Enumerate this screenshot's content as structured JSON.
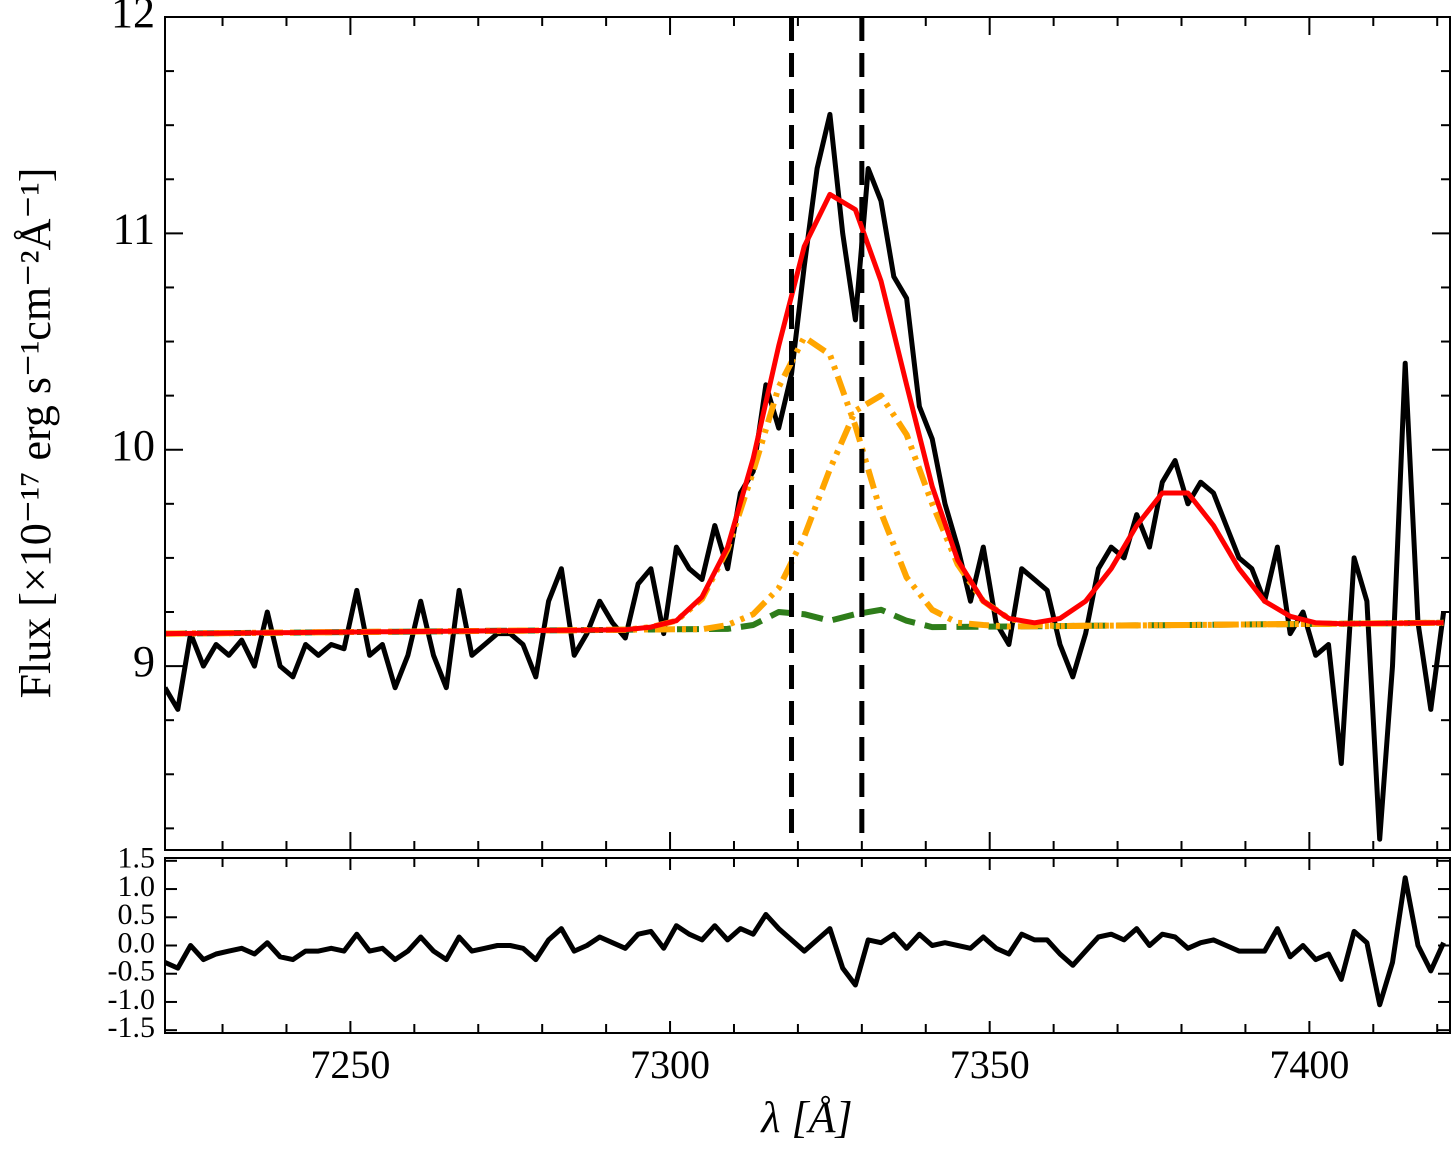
{
  "chart_data": [
    {
      "type": "line",
      "ylabel": "Flux [×10⁻¹⁷ erg s⁻¹cm⁻²Å⁻¹]",
      "xlim": [
        7221,
        7422
      ],
      "ylim": [
        8.15,
        12
      ],
      "yticks": [
        9,
        10,
        11,
        12
      ],
      "yminor": [
        8.25,
        8.5,
        8.75,
        9.25,
        9.5,
        9.75,
        10.25,
        10.5,
        10.75,
        11.25,
        11.5,
        11.75
      ],
      "vlines": [
        7319,
        7330
      ],
      "series": [
        {
          "color": "#000000",
          "style": "solid",
          "x": [
            7221,
            7223,
            7225,
            7227,
            7229,
            7231,
            7233,
            7235,
            7237,
            7239,
            7241,
            7243,
            7245,
            7247,
            7249,
            7251,
            7253,
            7255,
            7257,
            7259,
            7261,
            7263,
            7265,
            7267,
            7269,
            7271,
            7273,
            7275,
            7277,
            7279,
            7281,
            7283,
            7285,
            7287,
            7289,
            7291,
            7293,
            7295,
            7297,
            7299,
            7301,
            7303,
            7305,
            7307,
            7309,
            7311,
            7313,
            7315,
            7317,
            7319,
            7321,
            7323,
            7325,
            7327,
            7329,
            7331,
            7333,
            7335,
            7337,
            7339,
            7341,
            7343,
            7345,
            7347,
            7349,
            7351,
            7353,
            7355,
            7357,
            7359,
            7361,
            7363,
            7365,
            7367,
            7369,
            7371,
            7373,
            7375,
            7377,
            7379,
            7381,
            7383,
            7385,
            7387,
            7389,
            7391,
            7393,
            7395,
            7397,
            7399,
            7401,
            7403,
            7405,
            7407,
            7409,
            7411,
            7413,
            7415,
            7417,
            7419,
            7421
          ],
          "values": [
            8.9,
            8.8,
            9.15,
            9.0,
            9.1,
            9.05,
            9.12,
            9.0,
            9.25,
            9.0,
            8.95,
            9.1,
            9.05,
            9.1,
            9.08,
            9.35,
            9.05,
            9.1,
            8.9,
            9.05,
            9.3,
            9.05,
            8.9,
            9.35,
            9.05,
            9.1,
            9.15,
            9.15,
            9.1,
            8.95,
            9.3,
            9.45,
            9.05,
            9.15,
            9.3,
            9.2,
            9.13,
            9.38,
            9.45,
            9.15,
            9.55,
            9.45,
            9.4,
            9.65,
            9.45,
            9.8,
            9.9,
            10.3,
            10.1,
            10.35,
            10.85,
            11.3,
            11.55,
            11.0,
            10.6,
            11.3,
            11.15,
            10.8,
            10.7,
            10.2,
            10.05,
            9.75,
            9.55,
            9.3,
            9.55,
            9.2,
            9.1,
            9.45,
            9.4,
            9.35,
            9.1,
            8.95,
            9.15,
            9.45,
            9.55,
            9.5,
            9.7,
            9.55,
            9.85,
            9.95,
            9.75,
            9.85,
            9.8,
            9.65,
            9.5,
            9.45,
            9.3,
            9.55,
            9.15,
            9.25,
            9.05,
            9.1,
            8.55,
            9.5,
            9.3,
            8.2,
            9.0,
            10.4,
            9.2,
            8.8,
            9.25
          ]
        },
        {
          "color": "#2e7d1a",
          "style": "dashed",
          "x": [
            7221,
            7225,
            7229,
            7233,
            7237,
            7241,
            7245,
            7249,
            7253,
            7257,
            7261,
            7265,
            7269,
            7273,
            7277,
            7281,
            7285,
            7289,
            7293,
            7297,
            7301,
            7305,
            7309,
            7313,
            7317,
            7321,
            7325,
            7329,
            7333,
            7337,
            7341,
            7345,
            7349,
            7353,
            7357,
            7361,
            7365,
            7369,
            7373,
            7377,
            7381,
            7385,
            7389,
            7393,
            7397,
            7401,
            7405,
            7409,
            7413,
            7417,
            7421
          ],
          "values": [
            9.15,
            9.151,
            9.152,
            9.153,
            9.154,
            9.155,
            9.156,
            9.157,
            9.158,
            9.159,
            9.16,
            9.161,
            9.162,
            9.163,
            9.164,
            9.165,
            9.166,
            9.167,
            9.168,
            9.169,
            9.17,
            9.171,
            9.172,
            9.19,
            9.25,
            9.24,
            9.21,
            9.24,
            9.26,
            9.21,
            9.18,
            9.181,
            9.182,
            9.183,
            9.184,
            9.185,
            9.186,
            9.187,
            9.188,
            9.189,
            9.19,
            9.191,
            9.192,
            9.193,
            9.194,
            9.195,
            9.196,
            9.197,
            9.198,
            9.199,
            9.2
          ]
        },
        {
          "color": "#ffa500",
          "style": "dashdotdot",
          "x": [
            7221,
            7225,
            7229,
            7233,
            7237,
            7241,
            7245,
            7249,
            7253,
            7257,
            7261,
            7265,
            7269,
            7273,
            7277,
            7281,
            7285,
            7289,
            7293,
            7297,
            7301,
            7305,
            7309,
            7313,
            7317,
            7321,
            7325,
            7329,
            7333,
            7337,
            7341,
            7345,
            7349,
            7353,
            7357,
            7361,
            7365,
            7369,
            7373,
            7377,
            7381,
            7385,
            7389,
            7393,
            7397,
            7401,
            7405,
            7409,
            7413,
            7417,
            7421
          ],
          "values": [
            9.15,
            9.151,
            9.152,
            9.153,
            9.154,
            9.155,
            9.156,
            9.157,
            9.158,
            9.159,
            9.16,
            9.161,
            9.162,
            9.163,
            9.164,
            9.165,
            9.166,
            9.167,
            9.168,
            9.18,
            9.21,
            9.31,
            9.54,
            9.9,
            10.29,
            10.52,
            10.44,
            10.11,
            9.71,
            9.41,
            9.26,
            9.2,
            9.19,
            9.183,
            9.184,
            9.185,
            9.186,
            9.187,
            9.188,
            9.189,
            9.19,
            9.191,
            9.192,
            9.193,
            9.194,
            9.195,
            9.196,
            9.197,
            9.198,
            9.199,
            9.2
          ]
        },
        {
          "color": "#ffa500",
          "style": "dashdotdot",
          "x": [
            7221,
            7225,
            7229,
            7233,
            7237,
            7241,
            7245,
            7249,
            7253,
            7257,
            7261,
            7265,
            7269,
            7273,
            7277,
            7281,
            7285,
            7289,
            7293,
            7297,
            7301,
            7305,
            7309,
            7313,
            7317,
            7321,
            7325,
            7329,
            7333,
            7337,
            7341,
            7345,
            7349,
            7353,
            7357,
            7361,
            7365,
            7369,
            7373,
            7377,
            7381,
            7385,
            7389,
            7393,
            7397,
            7401,
            7405,
            7409,
            7413,
            7417,
            7421
          ],
          "values": [
            9.15,
            9.151,
            9.152,
            9.153,
            9.154,
            9.155,
            9.156,
            9.157,
            9.158,
            9.159,
            9.16,
            9.161,
            9.162,
            9.163,
            9.164,
            9.165,
            9.166,
            9.167,
            9.168,
            9.169,
            9.17,
            9.17,
            9.19,
            9.24,
            9.36,
            9.6,
            9.91,
            10.18,
            10.25,
            10.07,
            9.75,
            9.47,
            9.3,
            9.22,
            9.19,
            9.185,
            9.186,
            9.187,
            9.188,
            9.189,
            9.19,
            9.191,
            9.192,
            9.193,
            9.194,
            9.195,
            9.196,
            9.197,
            9.198,
            9.199,
            9.2
          ]
        },
        {
          "color": "#ff0000",
          "style": "solid",
          "x": [
            7221,
            7225,
            7229,
            7233,
            7237,
            7241,
            7245,
            7249,
            7253,
            7257,
            7261,
            7265,
            7269,
            7273,
            7277,
            7281,
            7285,
            7289,
            7293,
            7297,
            7301,
            7305,
            7309,
            7313,
            7317,
            7321,
            7325,
            7329,
            7333,
            7337,
            7341,
            7345,
            7349,
            7353,
            7357,
            7361,
            7365,
            7369,
            7373,
            7377,
            7381,
            7385,
            7389,
            7393,
            7397,
            7401,
            7405,
            7409,
            7413,
            7417,
            7421
          ],
          "values": [
            9.15,
            9.151,
            9.152,
            9.153,
            9.154,
            9.155,
            9.156,
            9.157,
            9.158,
            9.159,
            9.16,
            9.161,
            9.162,
            9.163,
            9.164,
            9.165,
            9.166,
            9.167,
            9.168,
            9.18,
            9.21,
            9.32,
            9.55,
            9.96,
            10.48,
            10.94,
            11.18,
            11.11,
            10.78,
            10.3,
            9.83,
            9.49,
            9.3,
            9.22,
            9.2,
            9.22,
            9.3,
            9.45,
            9.65,
            9.8,
            9.8,
            9.65,
            9.45,
            9.3,
            9.23,
            9.2,
            9.196,
            9.197,
            9.198,
            9.199,
            9.2
          ]
        }
      ]
    },
    {
      "type": "line",
      "xlabel": "λ [Å]",
      "xlim": [
        7221,
        7422
      ],
      "xticks": [
        7250,
        7300,
        7350,
        7400
      ],
      "xminor": [
        7230,
        7240,
        7260,
        7270,
        7280,
        7290,
        7310,
        7320,
        7330,
        7340,
        7360,
        7370,
        7380,
        7390,
        7410,
        7420
      ],
      "ylim": [
        -1.55,
        1.55
      ],
      "yticks": [
        {
          "value": 1.5,
          "label": "1.5"
        },
        {
          "value": 1,
          "label": "1.0"
        },
        {
          "value": 0.5,
          "label": "0.5"
        },
        {
          "value": 0,
          "label": "0.0"
        },
        {
          "value": -0.5,
          "label": "-0.5"
        },
        {
          "value": -1,
          "label": "-1.0"
        },
        {
          "value": -1.5,
          "label": "-1.5"
        }
      ],
      "series": [
        {
          "color": "#000000",
          "style": "solid",
          "x": [
            7221,
            7223,
            7225,
            7227,
            7229,
            7231,
            7233,
            7235,
            7237,
            7239,
            7241,
            7243,
            7245,
            7247,
            7249,
            7251,
            7253,
            7255,
            7257,
            7259,
            7261,
            7263,
            7265,
            7267,
            7269,
            7271,
            7273,
            7275,
            7277,
            7279,
            7281,
            7283,
            7285,
            7287,
            7289,
            7291,
            7293,
            7295,
            7297,
            7299,
            7301,
            7303,
            7305,
            7307,
            7309,
            7311,
            7313,
            7315,
            7317,
            7319,
            7321,
            7323,
            7325,
            7327,
            7329,
            7331,
            7333,
            7335,
            7337,
            7339,
            7341,
            7343,
            7345,
            7347,
            7349,
            7351,
            7353,
            7355,
            7357,
            7359,
            7361,
            7363,
            7365,
            7367,
            7369,
            7371,
            7373,
            7375,
            7377,
            7379,
            7381,
            7383,
            7385,
            7387,
            7389,
            7391,
            7393,
            7395,
            7397,
            7399,
            7401,
            7403,
            7405,
            7407,
            7409,
            7411,
            7413,
            7415,
            7417,
            7419,
            7421
          ],
          "values": [
            -0.3,
            -0.4,
            0.0,
            -0.25,
            -0.15,
            -0.1,
            -0.05,
            -0.15,
            0.05,
            -0.2,
            -0.25,
            -0.1,
            -0.1,
            -0.05,
            -0.1,
            0.2,
            -0.1,
            -0.05,
            -0.25,
            -0.1,
            0.15,
            -0.1,
            -0.25,
            0.15,
            -0.1,
            -0.05,
            0.0,
            0.0,
            -0.05,
            -0.25,
            0.1,
            0.3,
            -0.1,
            0.0,
            0.15,
            0.05,
            -0.05,
            0.2,
            0.25,
            -0.05,
            0.35,
            0.2,
            0.1,
            0.35,
            0.1,
            0.3,
            0.2,
            0.55,
            0.3,
            0.1,
            -0.1,
            0.1,
            0.3,
            -0.4,
            -0.7,
            0.1,
            0.05,
            0.2,
            -0.05,
            0.2,
            0.0,
            0.05,
            0.0,
            -0.05,
            0.15,
            -0.05,
            -0.15,
            0.2,
            0.1,
            0.1,
            -0.15,
            -0.35,
            -0.1,
            0.15,
            0.2,
            0.1,
            0.3,
            0.0,
            0.2,
            0.15,
            -0.05,
            0.05,
            0.1,
            0.0,
            -0.1,
            -0.1,
            -0.1,
            0.3,
            -0.2,
            0.0,
            -0.25,
            -0.15,
            -0.6,
            0.25,
            0.05,
            -1.05,
            -0.3,
            1.2,
            0.0,
            -0.45,
            0.05
          ]
        }
      ]
    }
  ]
}
